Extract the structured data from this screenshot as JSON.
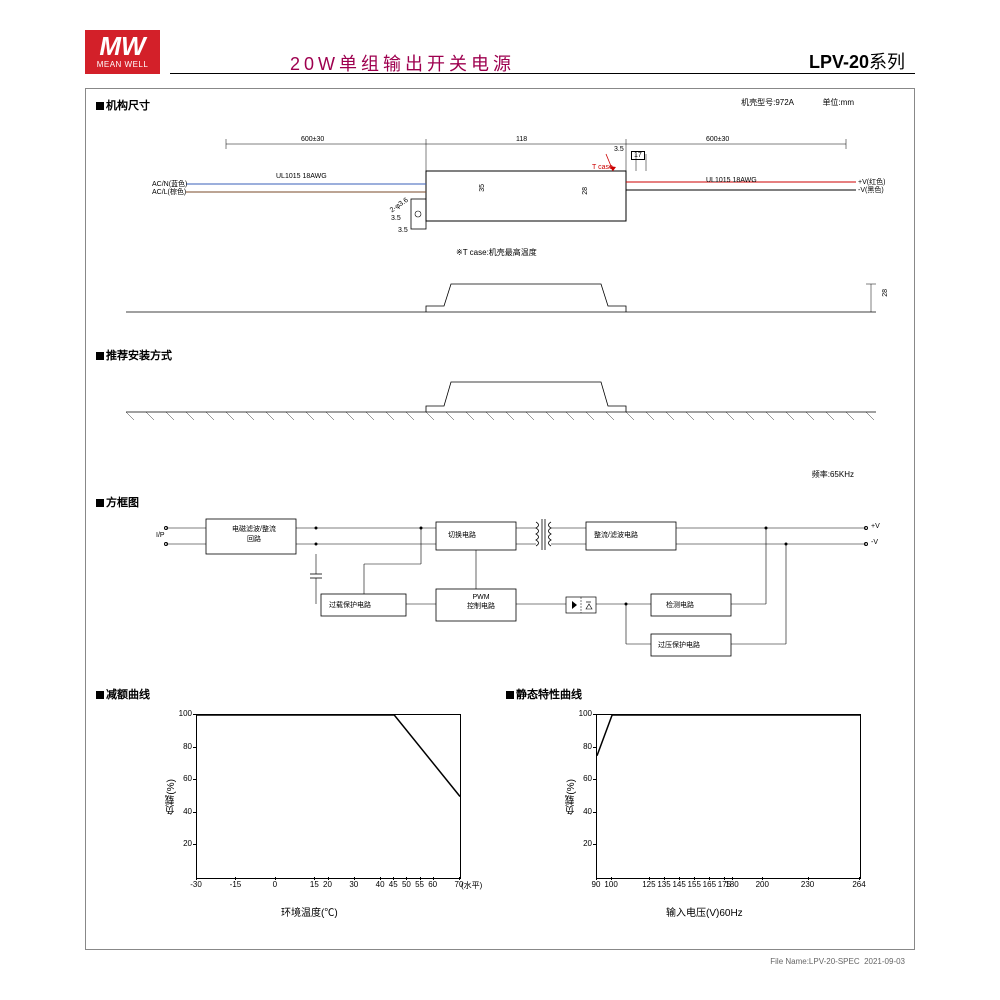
{
  "logo": {
    "main": "MW",
    "sub": "MEAN WELL"
  },
  "header": {
    "title": "20W单组输出开关电源",
    "series_bold": "LPV-20",
    "series_suffix": "系列"
  },
  "sections": {
    "mech": "机构尺寸",
    "install": "推荐安装方式",
    "block": "方框图",
    "derate": "减额曲线",
    "static": "静态特性曲线"
  },
  "mech": {
    "case_label": "机壳型号:",
    "case_model": "972A",
    "unit_label": "单位:",
    "unit": "mm",
    "dim_600": "600±30",
    "dim_118": "118",
    "dim_35": "35",
    "dim_28": "28",
    "dim_17": "17",
    "dim_3_5": "3.5",
    "dim_holes": "2-φ3.6",
    "wire": "UL1015 18AWG",
    "tcase": "T case",
    "tcase_note": "※T case:机壳最高温度",
    "ac_n": "AC/N(蓝色)",
    "ac_l": "AC/L(棕色)",
    "out_pv": "+V(红色)",
    "out_nv": "-V(黑色)",
    "side_28": "28"
  },
  "block": {
    "freq_label": "频率:",
    "freq": "65KHz",
    "ip": "I/P",
    "emi": "电磁滤波/整流\n回路",
    "switch": "切换电路",
    "rect": "整流/滤波电路",
    "olp": "过载保护电路",
    "pwm": "PWM\n控制电路",
    "detect": "检测电路",
    "ovp": "过压保护电路",
    "out_pv": "+V",
    "out_nv": "-V"
  },
  "derate_chart": {
    "type": "line",
    "xlabel": "环境温度(℃)",
    "ylabel": "负载(%)",
    "ylim": [
      0,
      100
    ],
    "xticks": [
      -30,
      -15,
      0,
      15,
      20,
      30,
      40,
      45,
      50,
      55,
      60,
      70
    ],
    "xtick_extra": "(水平)",
    "yticks": [
      20,
      40,
      60,
      80,
      100
    ],
    "points": [
      [
        -30,
        100
      ],
      [
        45,
        100
      ],
      [
        70,
        50
      ]
    ],
    "line_color": "#000",
    "line_width": 1.5,
    "bg": "#ffffff"
  },
  "static_chart": {
    "type": "line",
    "xlabel": "输入电压(V)60Hz",
    "ylabel": "负载(%)",
    "ylim": [
      0,
      100
    ],
    "xticks": [
      90,
      100,
      125,
      135,
      145,
      155,
      165,
      175,
      180,
      200,
      230,
      264
    ],
    "yticks": [
      20,
      40,
      60,
      80,
      100
    ],
    "points": [
      [
        90,
        75
      ],
      [
        100,
        100
      ],
      [
        264,
        100
      ]
    ],
    "line_color": "#000",
    "line_width": 1.5,
    "bg": "#ffffff"
  },
  "footer": {
    "filename": "File Name:LPV-20-SPEC",
    "date": "2021-09-03"
  }
}
